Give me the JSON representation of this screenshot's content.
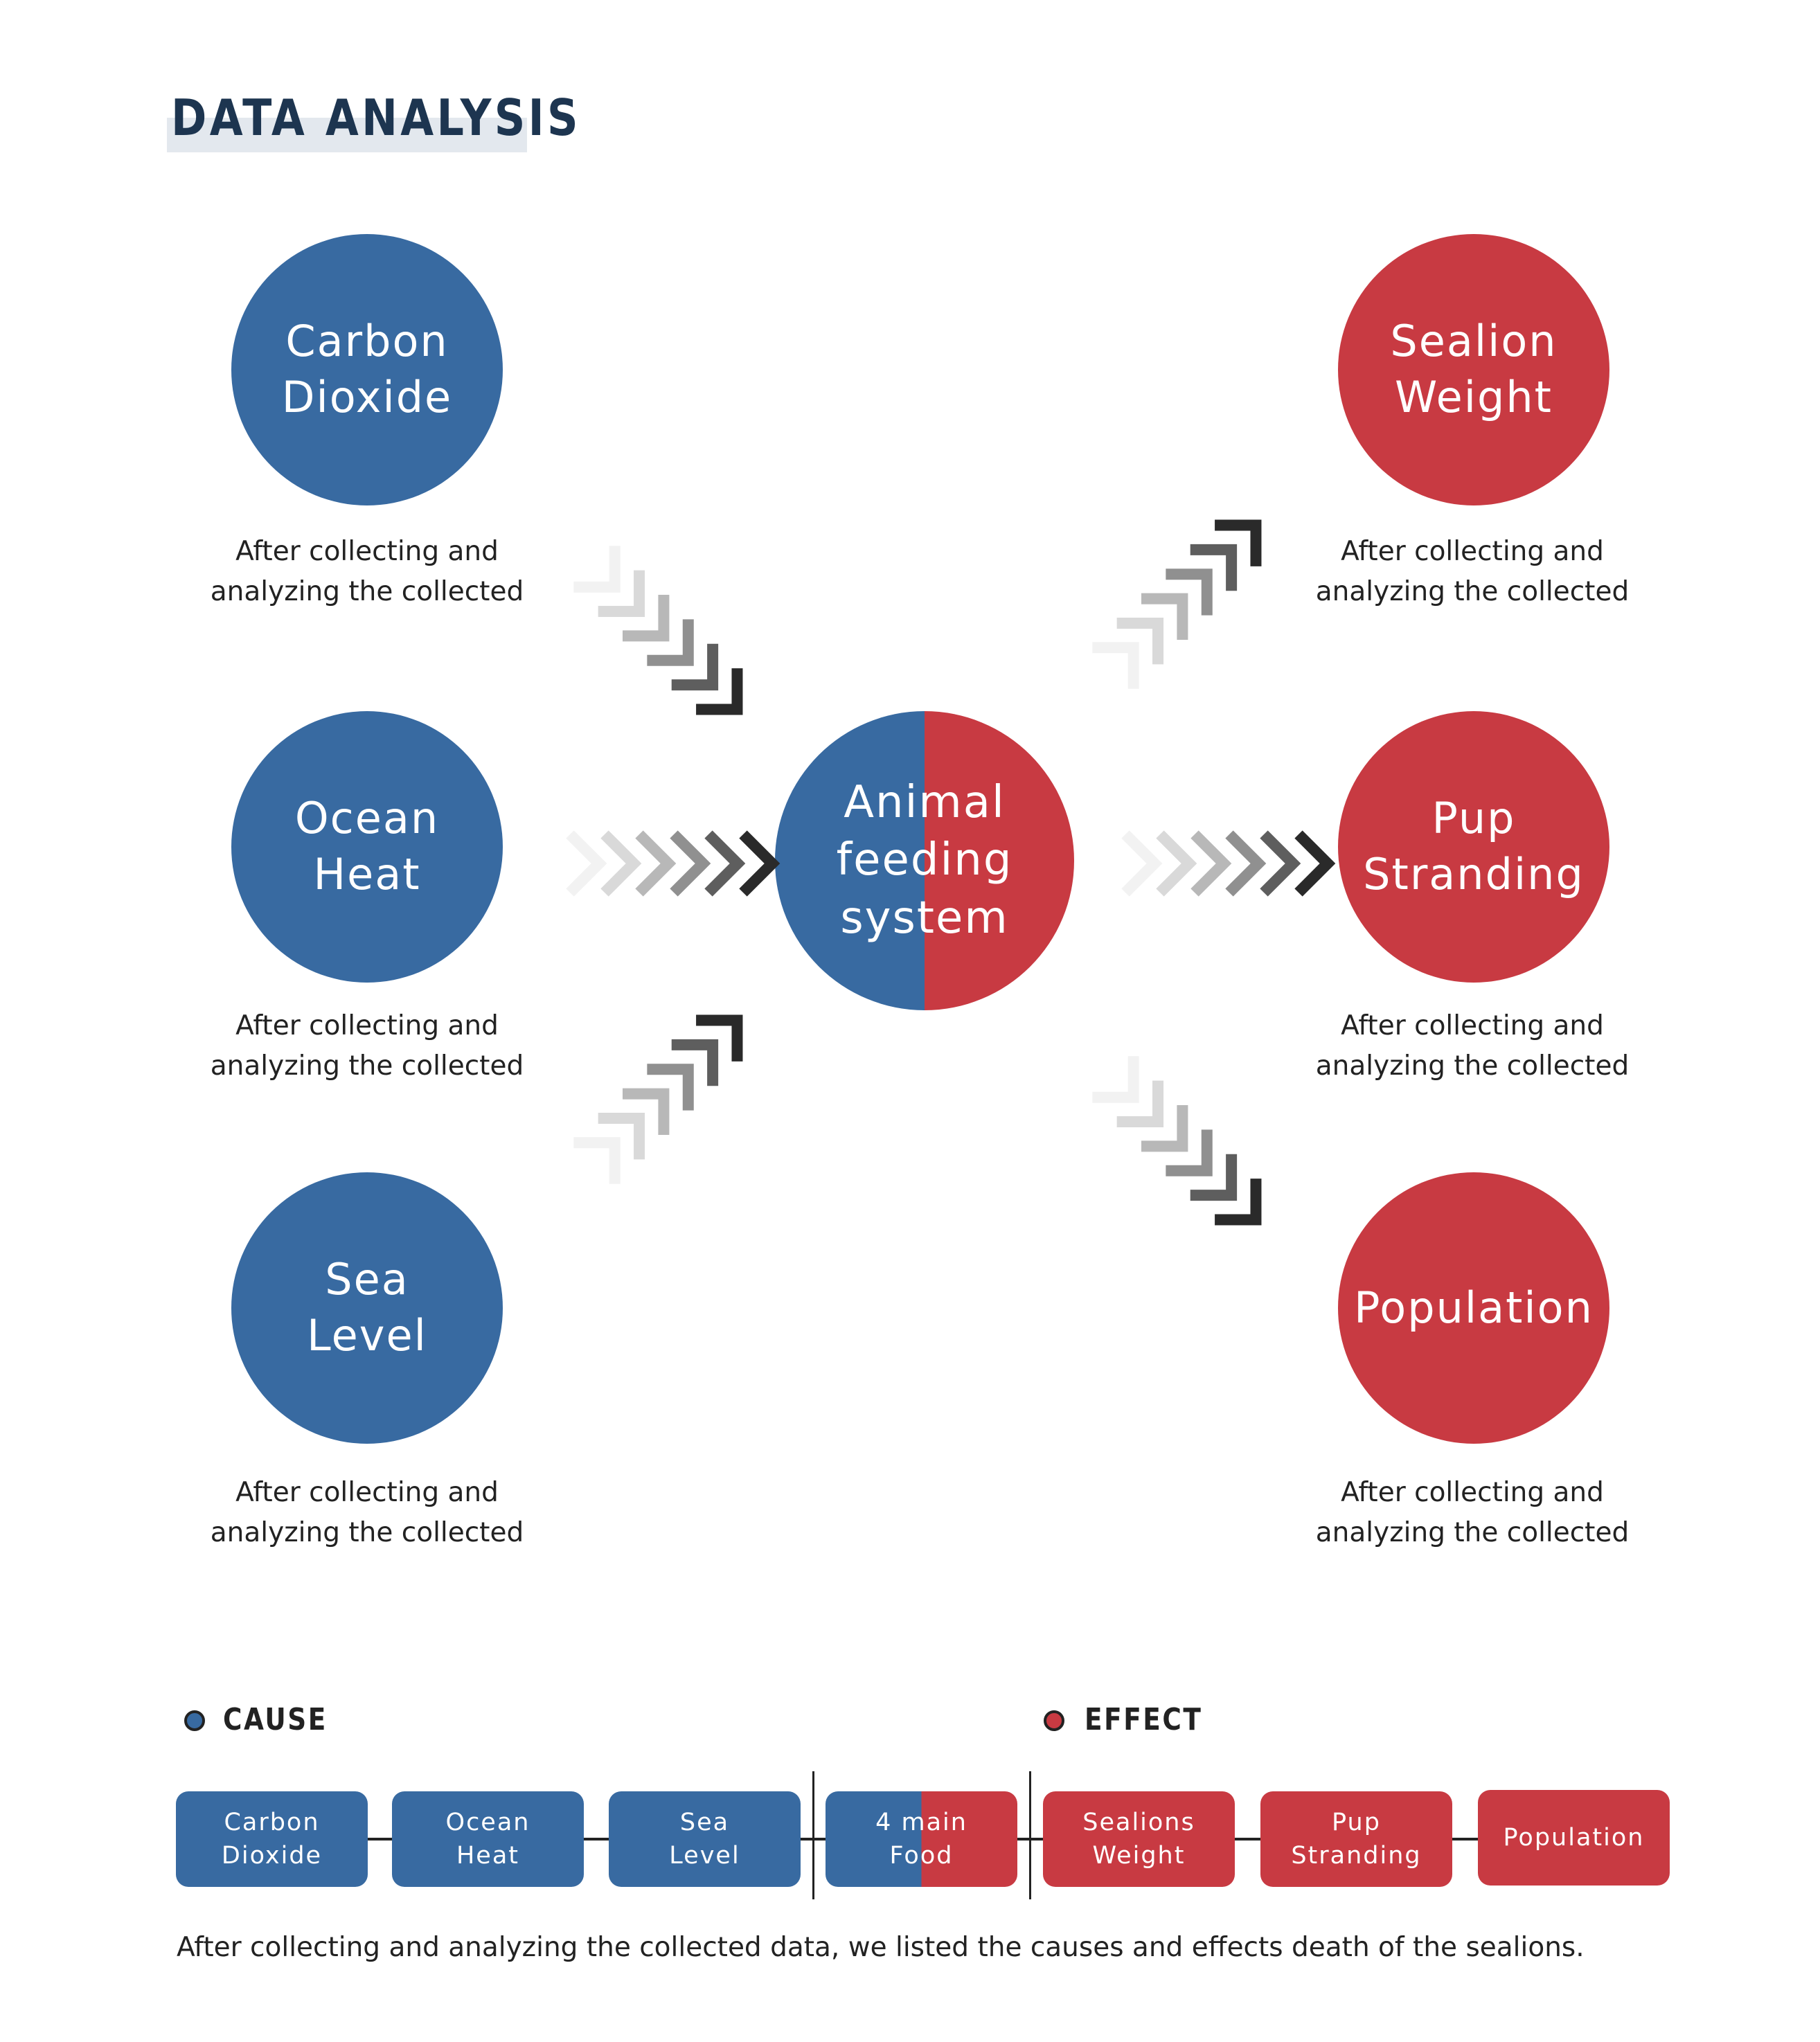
{
  "title": "DATA ANALYSIS",
  "colors": {
    "cause": "#386aa1",
    "effect": "#c83a42",
    "title": "#1d3550",
    "text": "#222222"
  },
  "causes": [
    {
      "label": "Carbon\nDioxide",
      "description": "After collecting and\nanalyzing the collected"
    },
    {
      "label": "Ocean\nHeat",
      "description": "After collecting and\nanalyzing the collected"
    },
    {
      "label": "Sea\nLevel",
      "description": "After collecting and\nanalyzing the collected"
    }
  ],
  "center": {
    "label": "Animal\nfeeding\nsystem"
  },
  "effects": [
    {
      "label": "Sealion\nWeight",
      "description": "After collecting and\nanalyzing the collected"
    },
    {
      "label": "Pup\nStranding",
      "description": "After collecting and\nanalyzing the collected"
    },
    {
      "label": "Population",
      "description": "After collecting and\nanalyzing the collected"
    }
  ],
  "legend": {
    "cause_label": "CAUSE",
    "effect_label": "EFFECT"
  },
  "flow": [
    {
      "label": "Carbon\nDioxide",
      "kind": "cause"
    },
    {
      "label": "Ocean\nHeat",
      "kind": "cause"
    },
    {
      "label": "Sea\nLevel",
      "kind": "cause"
    },
    {
      "label": "4 main\nFood",
      "kind": "mixed"
    },
    {
      "label": "Sealions\nWeight",
      "kind": "effect"
    },
    {
      "label": "Pup\nStranding",
      "kind": "effect"
    },
    {
      "label": "Population",
      "kind": "effect"
    }
  ],
  "footer": "After collecting and analyzing the collected data, we listed the causes and effects death of the sealions."
}
